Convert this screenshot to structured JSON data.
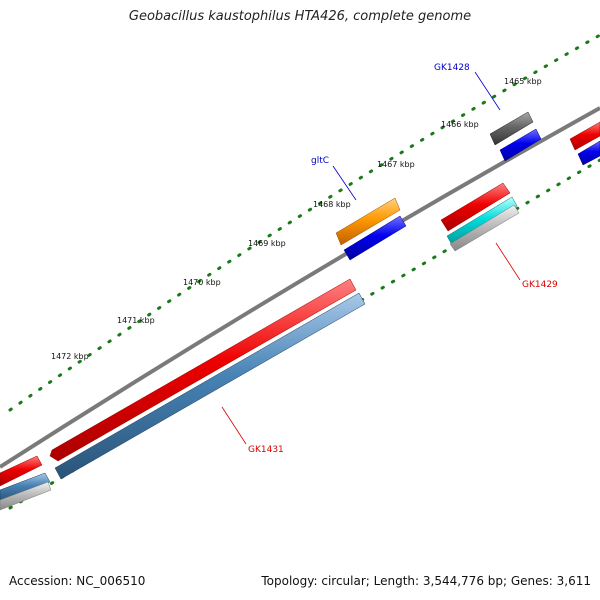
{
  "title": "Geobacillus kaustophilus HTA426, complete genome",
  "footer": {
    "accession": "Accession: NC_006510",
    "summary": "Topology: circular; Length: 3,544,776 bp; Genes: 3,611"
  },
  "scale": {
    "unit": "kbp",
    "tick_labels": [
      "1465 kbp",
      "1466 kbp",
      "1467 kbp",
      "1468 kbp",
      "1469 kbp",
      "1470 kbp",
      "1471 kbp",
      "1472 kbp"
    ]
  },
  "genes": [
    {
      "name": "GK1428",
      "color": "#0000cc"
    },
    {
      "name": "gltC",
      "color": "#0000cc"
    },
    {
      "name": "GK1429",
      "color": "#dd0000"
    },
    {
      "name": "GK1431",
      "color": "#dd0000"
    }
  ],
  "colors": {
    "backbone": "#7a7a7a",
    "ticks": "#1a7a1a",
    "forward_cds": "#ee0000",
    "blue_cds": "#0000ee",
    "orange_cds": "#ff9900",
    "cyan_cds": "#00dddd",
    "steelblue_cds": "#4682b4",
    "gray_cds": "#666666",
    "light_gray_cds": "#bbbbbb"
  }
}
